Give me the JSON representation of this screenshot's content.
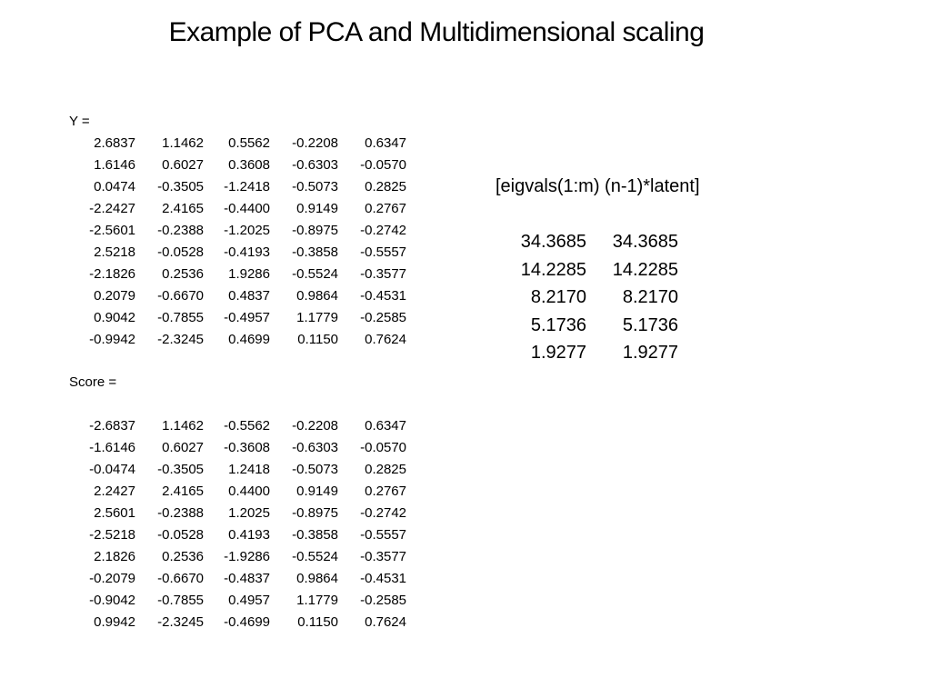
{
  "title": "Example of PCA and Multidimensional scaling",
  "y_matrix": {
    "label": "Y =",
    "rows": [
      [
        "2.6837",
        "1.1462",
        "0.5562",
        "-0.2208",
        "0.6347"
      ],
      [
        "1.6146",
        "0.6027",
        "0.3608",
        "-0.6303",
        "-0.0570"
      ],
      [
        "0.0474",
        "-0.3505",
        "-1.2418",
        "-0.5073",
        "0.2825"
      ],
      [
        "-2.2427",
        "2.4165",
        "-0.4400",
        "0.9149",
        "0.2767"
      ],
      [
        "-2.5601",
        "-0.2388",
        "-1.2025",
        "-0.8975",
        "-0.2742"
      ],
      [
        "2.5218",
        "-0.0528",
        "-0.4193",
        "-0.3858",
        "-0.5557"
      ],
      [
        "-2.1826",
        "0.2536",
        "1.9286",
        "-0.5524",
        "-0.3577"
      ],
      [
        "0.2079",
        "-0.6670",
        "0.4837",
        "0.9864",
        "-0.4531"
      ],
      [
        "0.9042",
        "-0.7855",
        "-0.4957",
        "1.1779",
        "-0.2585"
      ],
      [
        "-0.9942",
        "-2.3245",
        "0.4699",
        "0.1150",
        "0.7624"
      ]
    ]
  },
  "score_matrix": {
    "label": "Score =",
    "rows": [
      [
        "-2.6837",
        "1.1462",
        "-0.5562",
        "-0.2208",
        "0.6347"
      ],
      [
        "-1.6146",
        "0.6027",
        "-0.3608",
        "-0.6303",
        "-0.0570"
      ],
      [
        "-0.0474",
        "-0.3505",
        "1.2418",
        "-0.5073",
        "0.2825"
      ],
      [
        "2.2427",
        "2.4165",
        "0.4400",
        "0.9149",
        "0.2767"
      ],
      [
        "2.5601",
        "-0.2388",
        "1.2025",
        "-0.8975",
        "-0.2742"
      ],
      [
        "-2.5218",
        "-0.0528",
        "0.4193",
        "-0.3858",
        "-0.5557"
      ],
      [
        "2.1826",
        "0.2536",
        "-1.9286",
        "-0.5524",
        "-0.3577"
      ],
      [
        "-0.2079",
        "-0.6670",
        "-0.4837",
        "0.9864",
        "-0.4531"
      ],
      [
        "-0.9042",
        "-0.7855",
        "0.4957",
        "1.1779",
        "-0.2585"
      ],
      [
        "0.9942",
        "-2.3245",
        "-0.4699",
        "0.1150",
        "0.7624"
      ]
    ]
  },
  "eigen": {
    "header": "[eigvals(1:m) (n-1)*latent]",
    "rows": [
      [
        "34.3685",
        "34.3685"
      ],
      [
        "14.2285",
        "14.2285"
      ],
      [
        "8.2170",
        "8.2170"
      ],
      [
        "5.1736",
        "5.1736"
      ],
      [
        "1.9277",
        "1.9277"
      ]
    ]
  }
}
